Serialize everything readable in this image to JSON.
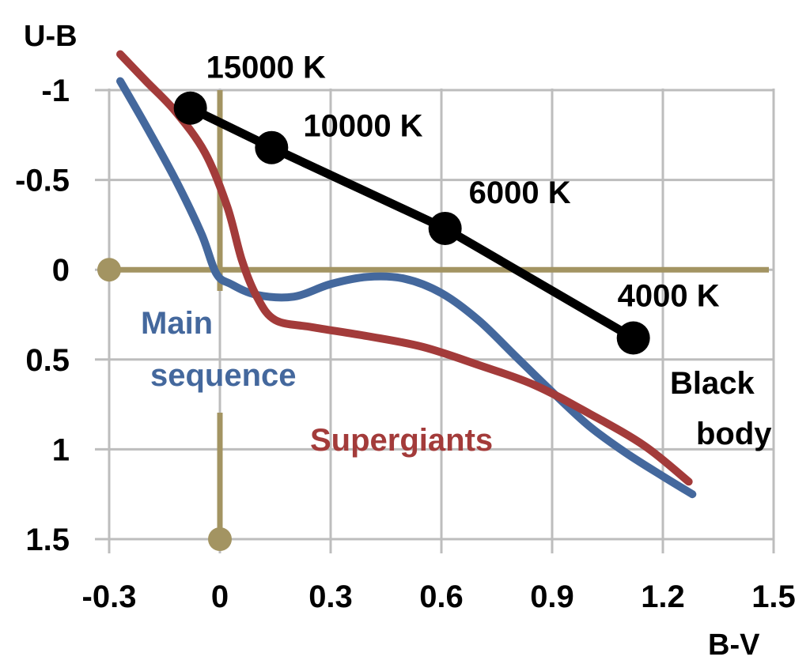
{
  "chart_data": {
    "type": "line",
    "xlabel": "B-V",
    "ylabel": "U-B",
    "xlim": [
      -0.3,
      1.5
    ],
    "ylim": [
      -1.2,
      1.5
    ],
    "y_inverted": true,
    "x_ticks": [
      "-0.3",
      "0",
      "0.3",
      "0.6",
      "0.9",
      "1.2",
      "1.5"
    ],
    "y_ticks": [
      "-1",
      "-0.5",
      "0",
      "0.5",
      "1",
      "1.5"
    ],
    "x_tick_values": [
      -0.3,
      0,
      0.3,
      0.6,
      0.9,
      1.2,
      1.5
    ],
    "y_tick_values": [
      -1,
      -0.5,
      0,
      0.5,
      1,
      1.5
    ],
    "grid": true,
    "series": [
      {
        "name": "Main sequence",
        "color": "#44689d",
        "x": [
          -0.27,
          -0.2,
          -0.12,
          -0.05,
          -0.01,
          0.03,
          0.1,
          0.2,
          0.3,
          0.4,
          0.5,
          0.6,
          0.7,
          0.8,
          0.9,
          1.0,
          1.1,
          1.2,
          1.28
        ],
        "y": [
          -1.05,
          -0.8,
          -0.5,
          -0.2,
          0.02,
          0.08,
          0.14,
          0.15,
          0.08,
          0.04,
          0.05,
          0.13,
          0.28,
          0.48,
          0.68,
          0.87,
          1.02,
          1.15,
          1.25
        ]
      },
      {
        "name": "Supergiants",
        "color": "#a33b3a",
        "x": [
          -0.27,
          -0.2,
          -0.12,
          -0.04,
          0.02,
          0.06,
          0.1,
          0.15,
          0.25,
          0.4,
          0.55,
          0.7,
          0.85,
          1.0,
          1.15,
          1.27
        ],
        "y": [
          -1.2,
          -1.05,
          -0.88,
          -0.65,
          -0.35,
          -0.05,
          0.15,
          0.28,
          0.32,
          0.37,
          0.43,
          0.53,
          0.64,
          0.8,
          0.98,
          1.18
        ]
      },
      {
        "name": "Black body",
        "color": "#000000",
        "x": [
          -0.08,
          0.14,
          0.61,
          1.12
        ],
        "y": [
          -0.9,
          -0.68,
          -0.23,
          0.38
        ],
        "point_labels": [
          "15000 K",
          "10000 K",
          "6000 K",
          "4000 K"
        ]
      }
    ],
    "labels": {
      "main_sequence_line1": "Main",
      "main_sequence_line2": "sequence",
      "supergiants": "Supergiants",
      "black_body_line1": "Black",
      "black_body_line2": "body"
    },
    "reference_lines": {
      "color": "#a39462",
      "x": 0,
      "y": 0
    }
  }
}
